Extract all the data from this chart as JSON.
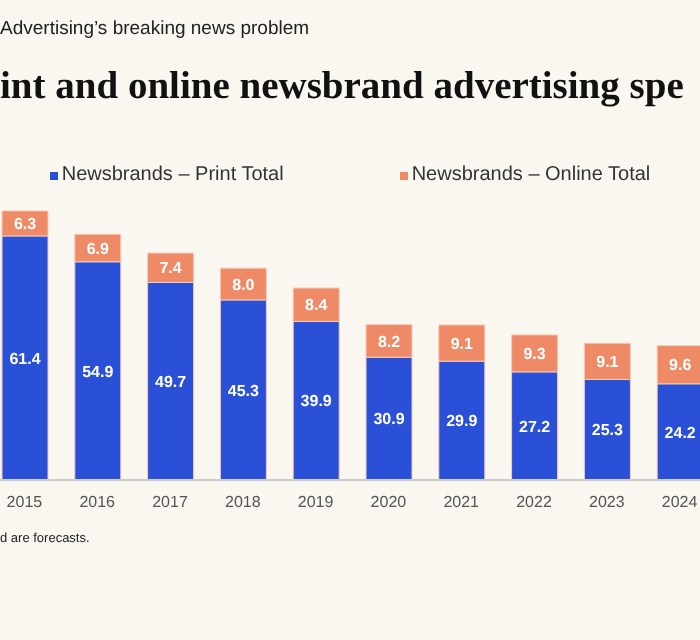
{
  "chart_data": {
    "type": "bar",
    "title": "int and online newsbrand advertising spe",
    "subtitle": "Advertising’s breaking news problem",
    "categories": [
      "2015",
      "2016",
      "2017",
      "2018",
      "2019",
      "2020",
      "2021",
      "2022",
      "2023",
      "2024"
    ],
    "series": [
      {
        "name": "Newsbrands – Print Total",
        "color": "#2b50d8",
        "values": [
          61.4,
          54.9,
          49.7,
          45.3,
          39.9,
          30.9,
          29.9,
          27.2,
          25.3,
          24.2
        ],
        "value_labels": [
          "61.4",
          "54.9",
          "49.7",
          "45.3",
          "39.9",
          "30.9",
          "29.9",
          "27.2",
          "25.3",
          "24.2"
        ]
      },
      {
        "name": "Newsbrands – Online Total",
        "color": "#ee8a65",
        "values": [
          6.3,
          6.9,
          7.4,
          8.0,
          8.4,
          8.2,
          9.1,
          9.3,
          9.1,
          9.6
        ],
        "value_labels": [
          "6.3",
          "6.9",
          "7.4",
          "8.0",
          "8.4",
          "8.2",
          "9.1",
          "9.3",
          "9.1",
          "9.6"
        ]
      }
    ],
    "stacked": true,
    "tick_labels": "x",
    "legend": "top",
    "annotations": [
      "d are forecasts."
    ]
  }
}
